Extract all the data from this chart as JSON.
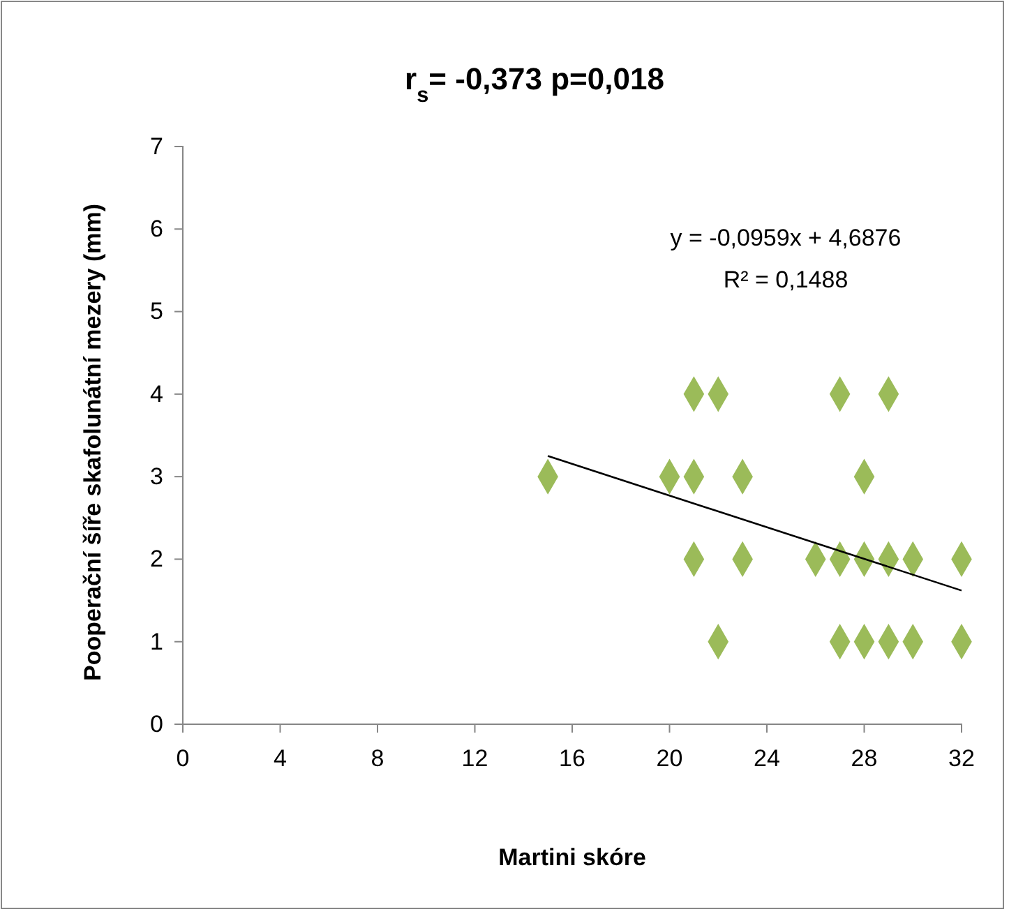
{
  "chart_data": {
    "type": "scatter",
    "title": "r$_{s}$= -0,373 p=0,018",
    "xlabel": "Martini skóre",
    "ylabel": "Pooperační šíře skafolunátní mezery (mm)",
    "xlim": [
      0,
      32
    ],
    "xticks": [
      0,
      4,
      8,
      12,
      16,
      20,
      24,
      28,
      32
    ],
    "ylim": [
      0,
      7
    ],
    "yticks": [
      0,
      1,
      2,
      3,
      4,
      5,
      6,
      7
    ],
    "grid": false,
    "marker": "diamond",
    "annotations": [
      "y = -0,0959x + 4,6876",
      "R² = 0,1488"
    ],
    "series": [
      {
        "color": "#9bbb59",
        "x": [
          15,
          20,
          21,
          21,
          21,
          22,
          22,
          23,
          23,
          26,
          27,
          27,
          27,
          28,
          28,
          28,
          29,
          29,
          29,
          30,
          30,
          32,
          32
        ],
        "values": [
          3,
          3,
          3,
          4,
          2,
          4,
          1,
          3,
          2,
          2,
          4,
          2,
          1,
          3,
          2,
          1,
          4,
          2,
          1,
          2,
          1,
          2,
          1
        ]
      },
      {
        "type": "line",
        "color": "#000000",
        "marker": "none",
        "x": [
          15,
          32
        ],
        "values": [
          3.25,
          1.62
        ]
      }
    ]
  }
}
